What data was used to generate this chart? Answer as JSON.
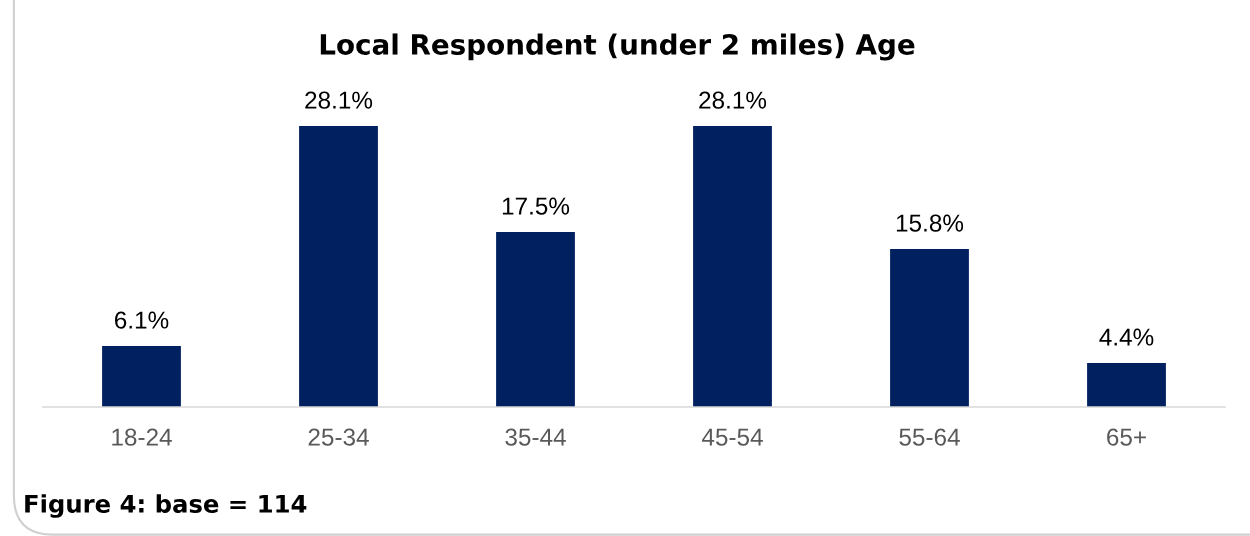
{
  "chart_data": {
    "type": "bar",
    "title": "Local Respondent (under 2 miles) Age",
    "categories": [
      "18-24",
      "25-34",
      "35-44",
      "45-54",
      "55-64",
      "65+"
    ],
    "values": [
      6.1,
      28.1,
      17.5,
      28.1,
      15.8,
      4.4
    ],
    "value_labels": [
      "6.1%",
      "28.1%",
      "17.5%",
      "28.1%",
      "15.8%",
      "4.4%"
    ],
    "color": "#002060",
    "tick_labels": "x",
    "annotations": [
      "Figure 4: base = 114"
    ]
  }
}
